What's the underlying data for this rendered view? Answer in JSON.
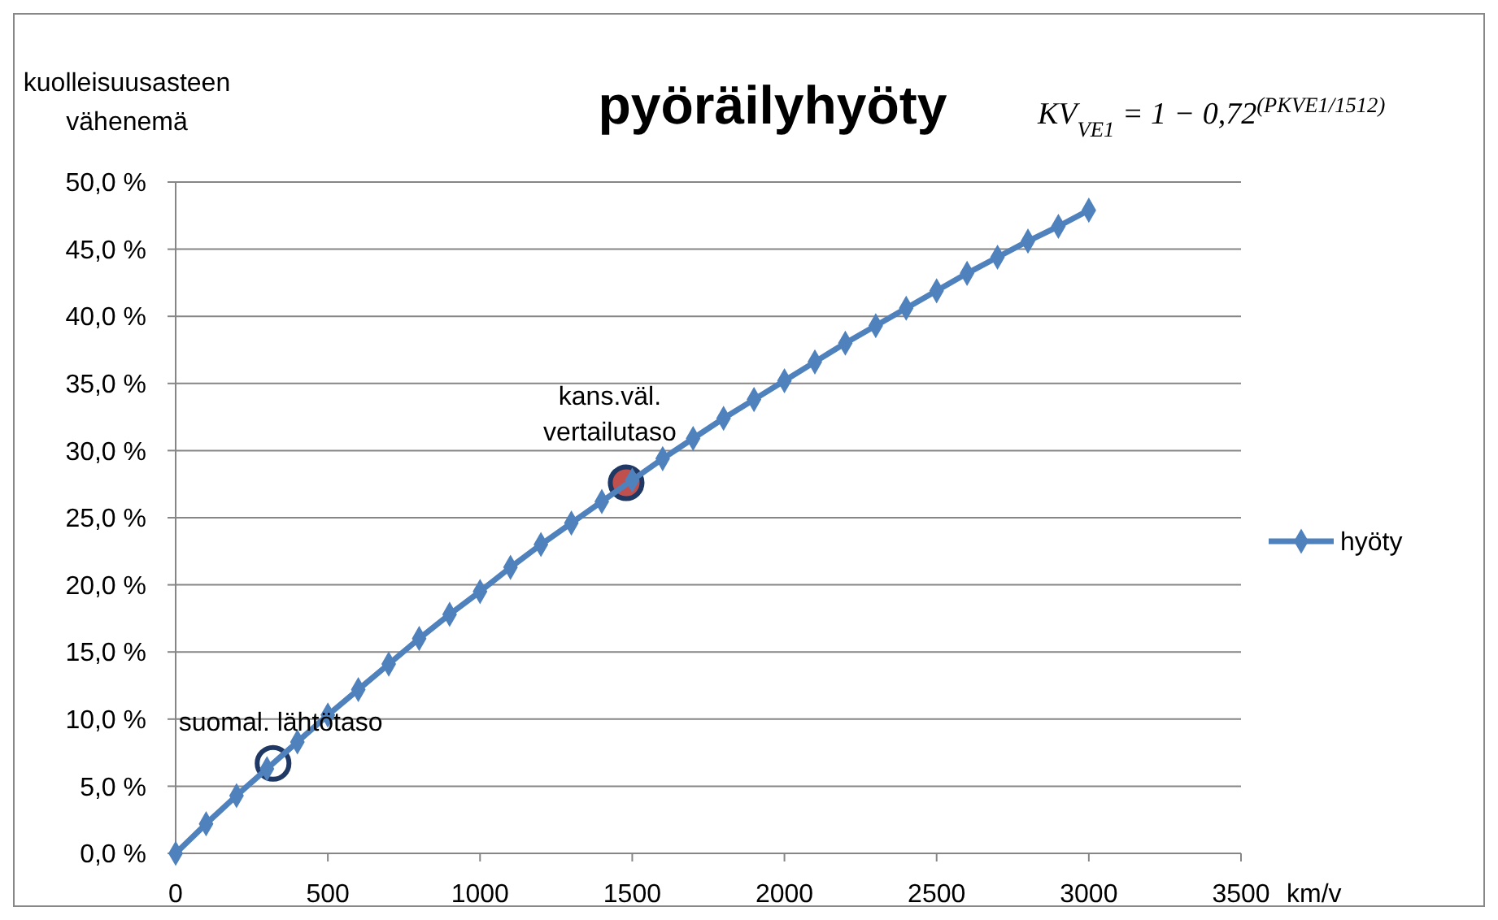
{
  "chart_data": {
    "type": "line",
    "title": "pyöräilyhyöty",
    "ylabel": "kuolleisuusasteen vähenemä",
    "xlabel": "km/v",
    "annotations": [
      "KV$_{VE1}$ = 1 − 0,72$^{(PKVE1/1512)}$",
      {
        "text": "suomal. lähtötaso",
        "x": 320,
        "y": 6.7
      },
      {
        "text": "kans.väl. vertailutaso",
        "x": 1480,
        "y": 27.6
      }
    ],
    "x": [
      0,
      100,
      200,
      300,
      400,
      500,
      600,
      700,
      800,
      900,
      1000,
      1100,
      1200,
      1300,
      1400,
      1500,
      1600,
      1700,
      1800,
      1900,
      2000,
      2100,
      2200,
      2300,
      2400,
      2500,
      2600,
      2700,
      2800,
      2900,
      3000
    ],
    "series": [
      {
        "name": "hyöty",
        "color": "#4f81bd",
        "marker": "diamond",
        "values": [
          0,
          2.2,
          4.3,
          6.3,
          8.3,
          10.3,
          12.2,
          14.1,
          16.0,
          17.8,
          19.5,
          21.3,
          23.0,
          24.6,
          26.2,
          27.8,
          29.4,
          30.9,
          32.4,
          33.8,
          35.2,
          36.6,
          38.0,
          39.3,
          40.6,
          41.9,
          43.2,
          44.4,
          45.6,
          46.7,
          47.9
        ]
      },
      {
        "type": "scatter",
        "color": "#ffffff",
        "marker": "circle",
        "x": [
          320
        ],
        "values": [
          6.7
        ]
      },
      {
        "type": "scatter",
        "color": "#c0504d",
        "marker": "circle",
        "x": [
          1480
        ],
        "values": [
          27.6
        ]
      }
    ],
    "xlim": [
      0,
      3500
    ],
    "xticks": [
      0,
      500,
      1000,
      1500,
      2000,
      2500,
      3000,
      3500
    ],
    "ylim": [
      0,
      50
    ],
    "yticks": [
      {
        "value": 0,
        "label": "0,0 %"
      },
      {
        "value": 5,
        "label": "5,0 %"
      },
      {
        "value": 10,
        "label": "10,0 %"
      },
      {
        "value": 15,
        "label": "15,0 %"
      },
      {
        "value": 20,
        "label": "20,0 %"
      },
      {
        "value": 25,
        "label": "25,0 %"
      },
      {
        "value": 30,
        "label": "30,0 %"
      },
      {
        "value": 35,
        "label": "35,0 %"
      },
      {
        "value": 40,
        "label": "40,0 %"
      },
      {
        "value": 45,
        "label": "45,0 %"
      },
      {
        "value": 50,
        "label": "50,0 %"
      }
    ],
    "grid": "y",
    "legend": "right"
  }
}
